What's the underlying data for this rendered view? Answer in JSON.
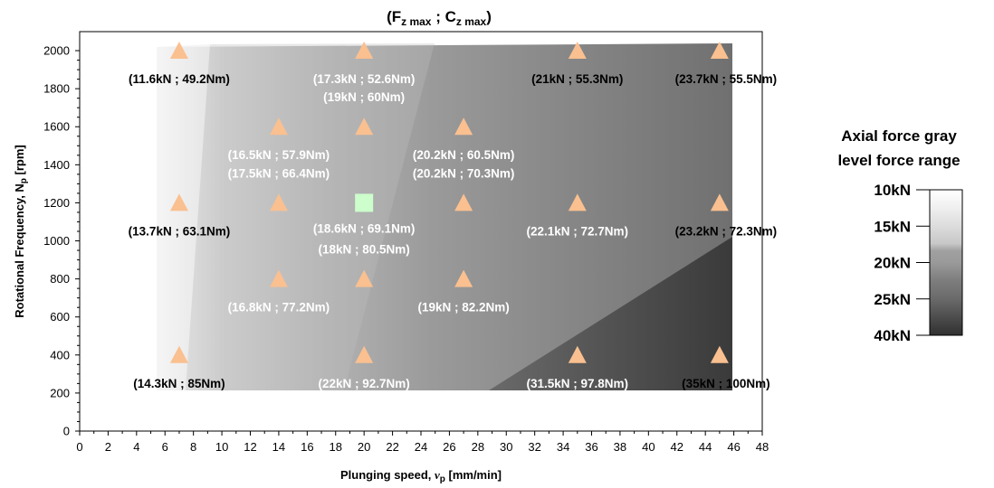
{
  "chart_data": {
    "type": "scatter",
    "title": {
      "prefix": "(F",
      "sub1": "z max",
      "mid": " ; C",
      "sub2": "z max",
      "suffix": ")"
    },
    "xlabel": {
      "main": "Plunging speed, ",
      "symbol": "v",
      "sub": "p",
      "unit": " [mm/min]"
    },
    "ylabel": {
      "main": "Rotational Frequency, N",
      "sub": "p",
      "unit": " [rpm]"
    },
    "xlim": [
      0,
      48
    ],
    "ylim": [
      0,
      2100
    ],
    "xticks": [
      "0",
      "2",
      "4",
      "6",
      "8",
      "10",
      "12",
      "14",
      "16",
      "18",
      "20",
      "22",
      "24",
      "26",
      "28",
      "30",
      "32",
      "34",
      "36",
      "38",
      "40",
      "42",
      "44",
      "46",
      "48"
    ],
    "yticks": [
      "0",
      "200",
      "400",
      "600",
      "800",
      "1000",
      "1200",
      "1400",
      "1600",
      "1800",
      "2000"
    ],
    "grid": false,
    "colors": {
      "marker": "#fac090",
      "highlight": "#ccffcc",
      "label_light": "#ffffff",
      "label_dark": "#000000"
    },
    "series": [
      {
        "marker": "triangle",
        "points": [
          {
            "x": 7,
            "y": 2000,
            "label": "(11.6kN ; 49.2Nm)"
          },
          {
            "x": 20,
            "y": 2000,
            "label": "(17.3kN ; 52.6Nm)"
          },
          {
            "x": 35,
            "y": 2000,
            "label": "(21kN ; 55.3Nm)"
          },
          {
            "x": 45,
            "y": 2000,
            "label": "(23.7kN ; 55.5Nm)"
          },
          {
            "x": 14,
            "y": 1600,
            "label": "(16.5kN ; 57.9Nm)"
          },
          {
            "x": 20,
            "y": 1600,
            "label": "(19kN ; 60Nm)"
          },
          {
            "x": 27,
            "y": 1600,
            "label": "(20.2kN ; 60.5Nm)"
          },
          {
            "x": 7,
            "y": 1200,
            "label": "(13.7kN ; 63.1Nm)"
          },
          {
            "x": 14,
            "y": 1200,
            "label": "(17.5kN ; 66.4Nm)"
          },
          {
            "x": 27,
            "y": 1200,
            "label": "(20.2kN ; 70.3Nm)"
          },
          {
            "x": 35,
            "y": 1200,
            "label": "(22.1kN ; 72.7Nm)"
          },
          {
            "x": 45,
            "y": 1200,
            "label": "(23.2kN ; 72.3Nm)"
          },
          {
            "x": 14,
            "y": 800,
            "label": "(16.8kN ; 77.2Nm)"
          },
          {
            "x": 20,
            "y": 800,
            "label": "(18kN ; 80.5Nm)"
          },
          {
            "x": 27,
            "y": 800,
            "label": "(19kN ; 82.2Nm)"
          },
          {
            "x": 7,
            "y": 400,
            "label": "(14.3kN ; 85Nm)"
          },
          {
            "x": 20,
            "y": 400,
            "label": "(22kN ; 92.7Nm)"
          },
          {
            "x": 35,
            "y": 400,
            "label": "(31.5kN ; 97.8Nm)"
          },
          {
            "x": 45,
            "y": 400,
            "label": "(35kN ; 100Nm)"
          }
        ]
      },
      {
        "marker": "square",
        "points": [
          {
            "x": 20,
            "y": 1200,
            "label": "(18.6kN ; 69.1Nm)"
          }
        ]
      }
    ],
    "colorbar": {
      "title_line1": "Axial force gray",
      "title_line2": "level force range",
      "levels": [
        "10kN",
        "15kN",
        "20kN",
        "25kN",
        "40kN"
      ]
    }
  }
}
